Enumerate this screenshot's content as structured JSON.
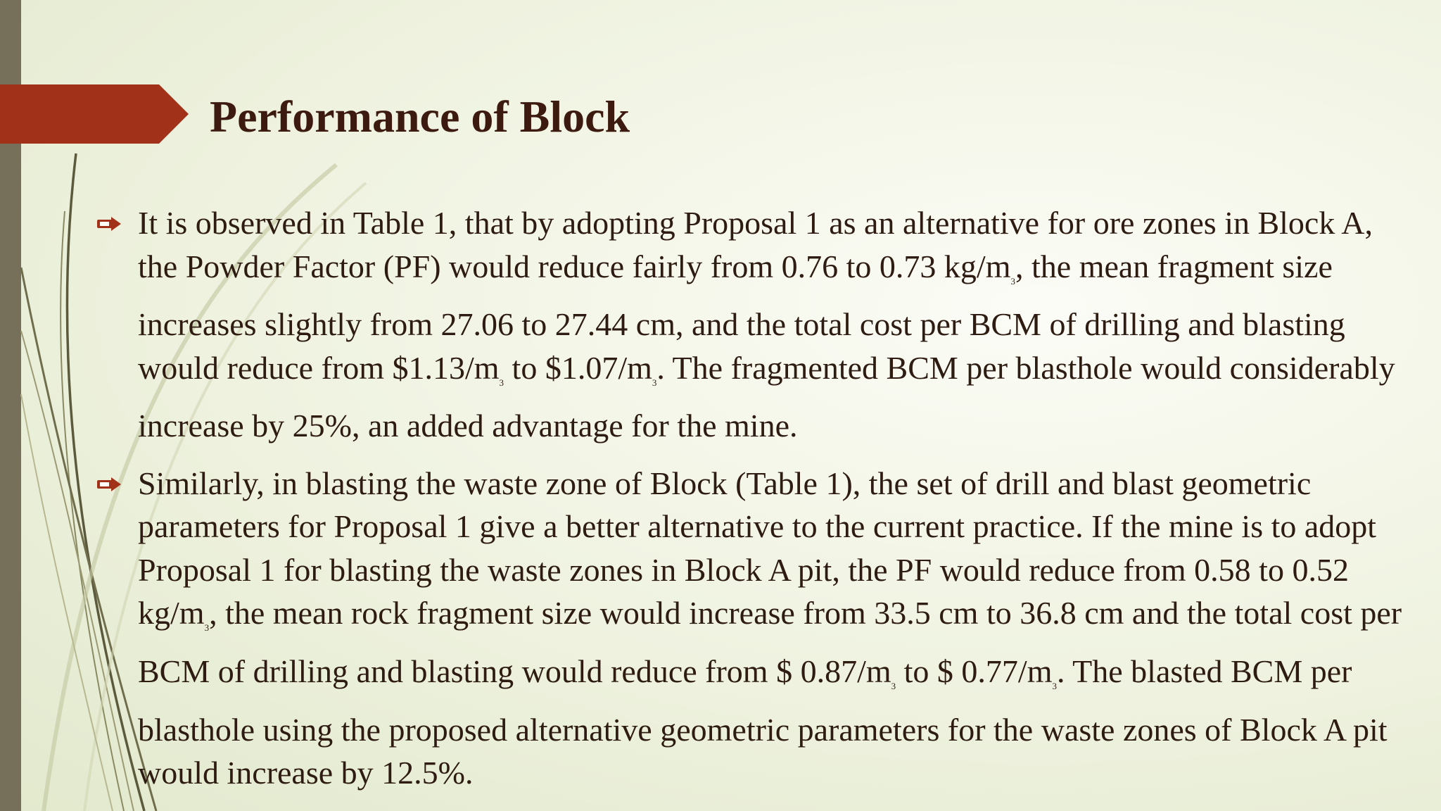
{
  "slide": {
    "title": "Performance of Block",
    "accent_color": "#a2311a",
    "sidebar_color": "#76705a",
    "text_color": "#2e1c12",
    "title_color": "#3d1a0f",
    "bullet_icon": "arrow-right-icon"
  },
  "bullets": [
    {
      "segments": [
        "It is observed in Table 1, that by adopting Proposal 1 as an alternative for ore zones in Block A, the Powder Factor (PF) would reduce fairly from 0.76 to 0.73 kg/m",
        "3",
        ", the mean fragment size increases slightly from 27.06 to 27.44 cm, and the total cost per BCM of drilling and blasting would reduce from $1.13/m",
        "3",
        " to $1.07/m",
        "3",
        ". The fragmented BCM per blasthole would considerably increase by 25%, an added advantage for the mine."
      ]
    },
    {
      "segments": [
        "Similarly, in blasting the waste zone of Block  (Table 1), the set of drill and blast geometric parameters for Proposal 1 give a better alternative to the current practice. If the mine is to adopt Proposal 1 for blasting the waste zones in Block A pit, the PF would reduce from 0.58 to 0.52 kg/m",
        "3",
        ", the mean rock fragment size would increase from 33.5 cm to 36.8 cm and the total cost per BCM of drilling and blasting would reduce from $ 0.87/m",
        "3",
        " to $ 0.77/m",
        "3",
        ". The blasted BCM per blasthole using the proposed alternative geometric parameters for the waste zones of Block A pit would increase by 12.5%."
      ]
    }
  ]
}
